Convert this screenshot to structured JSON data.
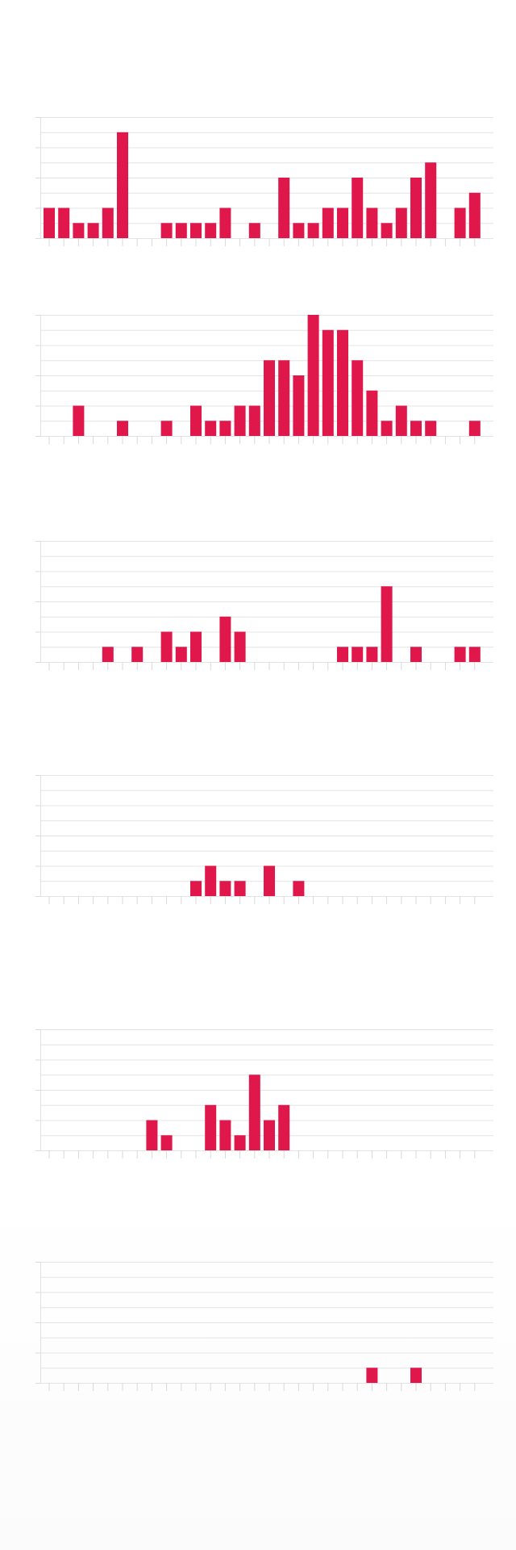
{
  "chart_data": [
    {
      "type": "bar",
      "title": "",
      "xlabel": "",
      "ylabel": "",
      "ylim": [
        0,
        8
      ],
      "grid": true,
      "color": "#e0174a",
      "values": [
        2,
        2,
        1,
        1,
        2,
        7,
        0,
        0,
        1,
        1,
        1,
        1,
        2,
        0,
        1,
        0,
        4,
        1,
        1,
        2,
        2,
        4,
        2,
        1,
        2,
        4,
        5,
        0,
        2,
        3
      ]
    },
    {
      "type": "bar",
      "title": "",
      "xlabel": "",
      "ylabel": "",
      "ylim": [
        0,
        8
      ],
      "grid": true,
      "color": "#e0174a",
      "values": [
        0,
        0,
        2,
        0,
        0,
        1,
        0,
        0,
        1,
        0,
        2,
        1,
        1,
        2,
        2,
        5,
        5,
        4,
        8,
        7,
        7,
        5,
        3,
        1,
        2,
        1,
        1,
        0,
        0,
        1
      ]
    },
    {
      "type": "bar",
      "title": "",
      "xlabel": "",
      "ylabel": "",
      "ylim": [
        0,
        8
      ],
      "grid": true,
      "color": "#e0174a",
      "values": [
        0,
        0,
        0,
        0,
        1,
        0,
        1,
        0,
        2,
        1,
        2,
        0,
        3,
        2,
        0,
        0,
        0,
        0,
        0,
        0,
        1,
        1,
        1,
        5,
        0,
        1,
        0,
        0,
        1,
        1
      ]
    },
    {
      "type": "bar",
      "title": "",
      "xlabel": "",
      "ylabel": "",
      "ylim": [
        0,
        8
      ],
      "grid": true,
      "color": "#e0174a",
      "values": [
        0,
        0,
        0,
        0,
        0,
        0,
        0,
        0,
        0,
        0,
        1,
        2,
        1,
        1,
        0,
        2,
        0,
        1,
        0,
        0,
        0,
        0,
        0,
        0,
        0,
        0,
        0,
        0,
        0,
        0
      ]
    },
    {
      "type": "bar",
      "title": "",
      "xlabel": "",
      "ylabel": "",
      "ylim": [
        0,
        8
      ],
      "grid": true,
      "color": "#e0174a",
      "values": [
        0,
        0,
        0,
        0,
        0,
        0,
        0,
        2,
        1,
        0,
        0,
        3,
        2,
        1,
        5,
        2,
        3,
        0,
        0,
        0,
        0,
        0,
        0,
        0,
        0,
        0,
        0,
        0,
        0,
        0
      ]
    },
    {
      "type": "bar",
      "title": "",
      "xlabel": "",
      "ylabel": "",
      "ylim": [
        0,
        8
      ],
      "grid": true,
      "color": "#e0174a",
      "values": [
        0,
        0,
        0,
        0,
        0,
        0,
        0,
        0,
        0,
        0,
        0,
        0,
        0,
        0,
        0,
        0,
        0,
        0,
        0,
        0,
        0,
        0,
        1,
        0,
        0,
        1,
        0,
        0,
        0,
        0
      ]
    }
  ]
}
